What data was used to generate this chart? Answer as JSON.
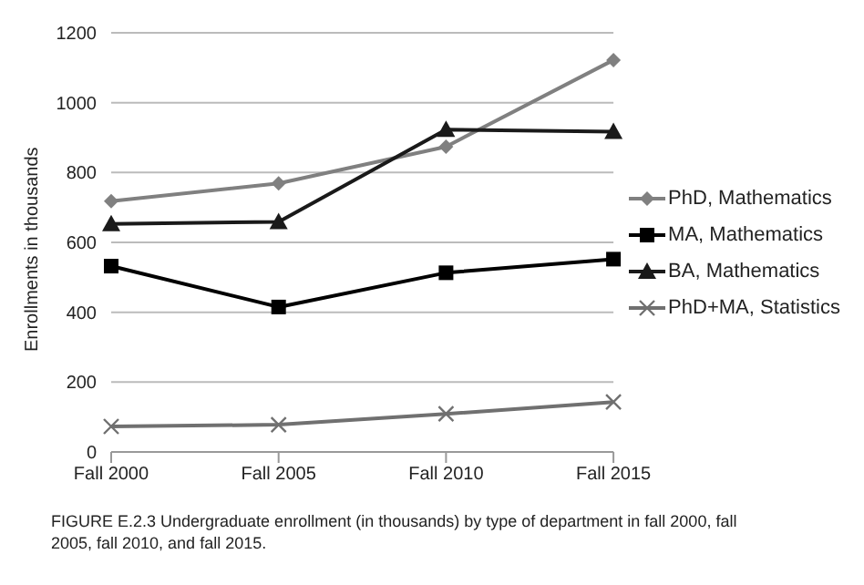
{
  "chart_data": {
    "type": "line",
    "ylabel": "Enrollments in thousands",
    "categories": [
      "Fall 2000",
      "Fall 2005",
      "Fall 2010",
      "Fall 2015"
    ],
    "series": [
      {
        "name": "PhD, Mathematics",
        "color": "#808080",
        "marker": "diamond",
        "values": [
          718,
          769,
          874,
          1122
        ]
      },
      {
        "name": "MA, Mathematics",
        "color": "#000000",
        "marker": "square",
        "values": [
          532,
          415,
          513,
          552
        ]
      },
      {
        "name": "BA, Mathematics",
        "color": "#1a1a1a",
        "marker": "triangle",
        "values": [
          653,
          659,
          923,
          917
        ]
      },
      {
        "name": "PhD+MA, Statistics",
        "color": "#707070",
        "marker": "cross",
        "values": [
          73,
          78,
          109,
          143
        ]
      }
    ],
    "ylim": [
      0,
      1200
    ],
    "yticks": [
      0,
      200,
      400,
      600,
      800,
      1000,
      1200
    ],
    "grid": "y",
    "legend": "right",
    "line_style": "solid",
    "annotations": [
      "FIGURE E.2.3  Undergraduate enrollment (in thousands) by type of department in fall 2000, fall 2005, fall 2010, and fall 2015."
    ]
  }
}
